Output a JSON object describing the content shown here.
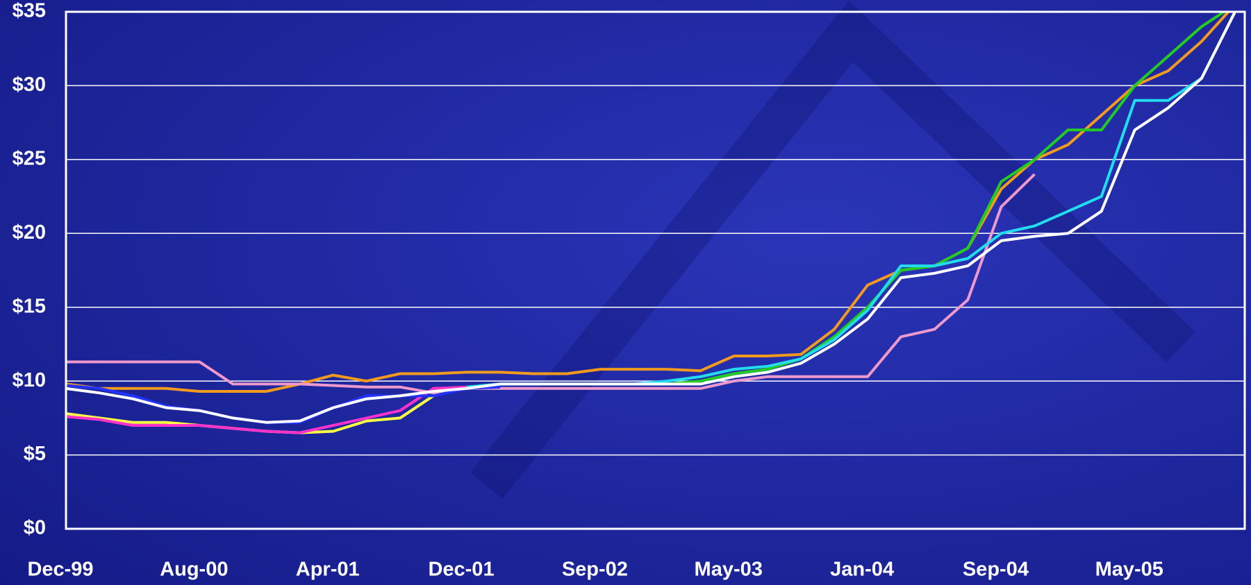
{
  "chart_data": {
    "type": "line",
    "categories": [
      "Dec-99",
      null,
      null,
      null,
      "Aug-00",
      null,
      null,
      null,
      "Apr-01",
      null,
      null,
      null,
      "Dec-01",
      null,
      null,
      null,
      "Sep-02",
      null,
      null,
      null,
      "May-03",
      null,
      null,
      null,
      "Jan-04",
      null,
      null,
      null,
      "Sep-04",
      null,
      null,
      null,
      "May-05",
      null,
      null,
      null
    ],
    "ylim": [
      0,
      35
    ],
    "yticks": [
      {
        "value": 0,
        "label": "$0"
      },
      {
        "value": 5,
        "label": "$5"
      },
      {
        "value": 10,
        "label": "$10"
      },
      {
        "value": 15,
        "label": "$15"
      },
      {
        "value": 20,
        "label": "$20"
      },
      {
        "value": 25,
        "label": "$25"
      },
      {
        "value": 30,
        "label": "$30"
      },
      {
        "value": 35,
        "label": "$35"
      }
    ],
    "grid": true,
    "series": [
      {
        "color": "#f29a1e",
        "values": [
          9.8,
          9.5,
          9.5,
          9.5,
          9.3,
          9.3,
          9.3,
          9.8,
          10.4,
          10.0,
          10.5,
          10.5,
          10.6,
          10.6,
          10.5,
          10.5,
          10.8,
          10.8,
          10.8,
          10.7,
          11.7,
          11.7,
          11.8,
          13.5,
          16.5,
          17.5,
          17.8,
          19.0,
          23.0,
          25.0,
          26.0,
          28.0,
          30.0,
          31.0,
          33.0,
          35.5
        ]
      },
      {
        "color": "#ee99cc",
        "values": [
          11.3,
          11.3,
          11.3,
          11.3,
          11.3,
          9.8,
          9.8,
          9.8,
          9.7,
          9.6,
          9.6,
          9.2,
          9.5,
          9.5,
          9.5,
          9.5,
          9.5,
          9.5,
          9.5,
          9.5,
          10.0,
          10.3,
          10.3,
          10.3,
          10.3,
          13.0,
          13.5,
          15.5,
          21.8,
          24.0,
          null,
          null,
          null,
          null,
          null,
          null
        ]
      },
      {
        "color": "#ffff44",
        "values": [
          7.8,
          7.5,
          7.2,
          7.2,
          7.0,
          6.8,
          6.6,
          6.5,
          6.6,
          7.3,
          7.5,
          9.0,
          9.6,
          null,
          null,
          null,
          null,
          null,
          null,
          null,
          null,
          null,
          null,
          null,
          null,
          null,
          null,
          null,
          null,
          null,
          null,
          null,
          null,
          null,
          null,
          null
        ]
      },
      {
        "color": "#ff33cc",
        "values": [
          7.6,
          7.4,
          7.0,
          7.0,
          7.0,
          6.8,
          6.6,
          6.5,
          7.0,
          7.5,
          8.0,
          9.5,
          9.6,
          null,
          null,
          null,
          null,
          null,
          null,
          null,
          null,
          null,
          null,
          null,
          null,
          null,
          null,
          null,
          null,
          null,
          null,
          null,
          null,
          null,
          null,
          null
        ]
      },
      {
        "color": "#2233ff",
        "values": [
          9.7,
          9.5,
          9.0,
          8.3,
          8.0,
          7.5,
          7.2,
          7.2,
          8.2,
          9.0,
          9.0,
          9.0,
          9.5,
          9.6,
          null,
          null,
          null,
          null,
          null,
          null,
          null,
          null,
          null,
          null,
          null,
          null,
          null,
          null,
          null,
          null,
          null,
          null,
          null,
          null,
          null,
          null
        ]
      },
      {
        "color": "#22cc22",
        "values": [
          null,
          null,
          null,
          null,
          null,
          null,
          null,
          null,
          null,
          null,
          null,
          null,
          9.6,
          9.8,
          9.8,
          9.8,
          9.8,
          9.8,
          9.8,
          10.0,
          10.5,
          10.8,
          11.5,
          13.0,
          15.0,
          17.5,
          17.8,
          19.0,
          23.5,
          25.0,
          27.0,
          27.0,
          30.0,
          32.0,
          34.0,
          35.5
        ]
      },
      {
        "color": "#22ddee",
        "values": [
          null,
          null,
          null,
          null,
          null,
          null,
          null,
          null,
          null,
          null,
          null,
          null,
          9.6,
          9.8,
          9.8,
          9.8,
          9.8,
          9.8,
          10.0,
          10.3,
          10.8,
          11.0,
          11.5,
          12.8,
          14.8,
          17.8,
          17.8,
          18.3,
          20.0,
          20.5,
          21.5,
          22.5,
          29.0,
          29.0,
          30.5,
          35.0
        ]
      },
      {
        "color": "#ffffff",
        "values": [
          9.5,
          9.2,
          8.8,
          8.2,
          8.0,
          7.5,
          7.2,
          7.3,
          8.2,
          8.8,
          9.0,
          9.3,
          9.5,
          9.8,
          9.8,
          9.8,
          9.8,
          9.8,
          9.8,
          9.8,
          10.3,
          10.6,
          11.2,
          12.5,
          14.2,
          17.0,
          17.3,
          17.8,
          19.5,
          19.8,
          20.0,
          21.5,
          27.0,
          28.5,
          30.5,
          35.0
        ]
      }
    ]
  }
}
